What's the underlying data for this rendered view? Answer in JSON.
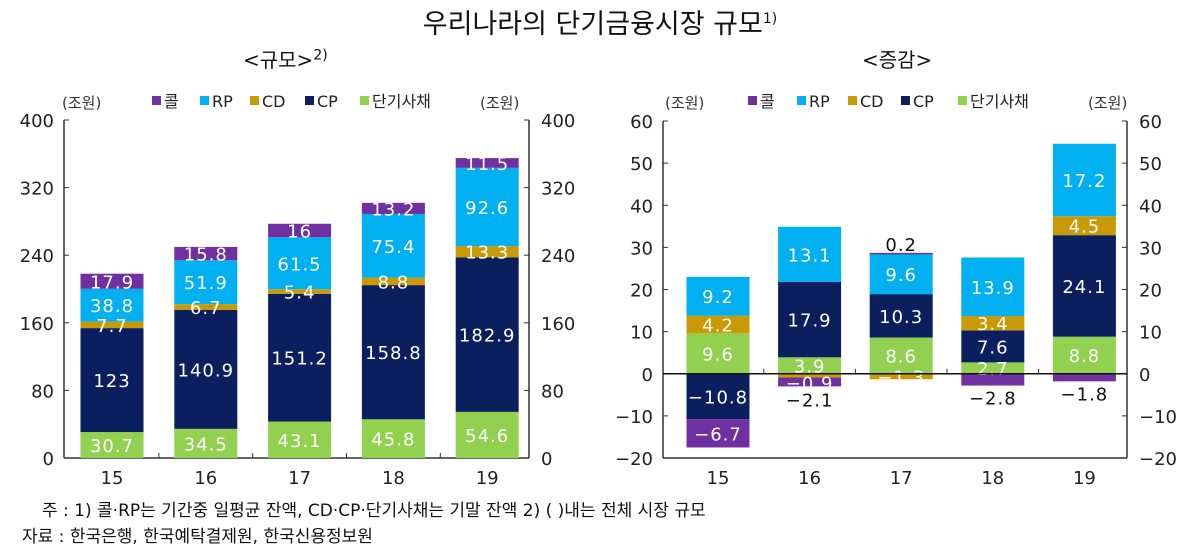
{
  "title": "우리나라의 단기금융시장 규모",
  "title_note": "1)",
  "footnote": "주 : 1) 콜·RP는 기간중 일평균 잔액, CD·CP·단기사채는 기말 잔액    2) ( )내는 전체 시장 규모",
  "source": "자료 : 한국은행, 한국예탁결제원, 한국신용정보원",
  "chart_data": [
    {
      "type": "bar",
      "stacked": true,
      "title": "<규모>",
      "title_note": "2)",
      "ylabel": "(조원)",
      "ylabel_right": "(조원)",
      "ylim": [
        0,
        400
      ],
      "yticks": [
        0,
        80,
        160,
        240,
        320,
        400
      ],
      "categories": [
        "15",
        "16",
        "17",
        "18",
        "19"
      ],
      "legend_position": "top",
      "series": [
        {
          "name": "단기사채",
          "color": "#92d050",
          "values": [
            30.7,
            34.5,
            43.1,
            45.8,
            54.6
          ]
        },
        {
          "name": "CP",
          "color": "#0b1f5e",
          "values": [
            123.0,
            140.9,
            151.2,
            158.8,
            182.9
          ]
        },
        {
          "name": "CD",
          "color": "#c99a06",
          "values": [
            7.7,
            6.7,
            5.4,
            8.8,
            13.3
          ]
        },
        {
          "name": "RP",
          "color": "#00b0f0",
          "values": [
            38.8,
            51.9,
            61.5,
            75.4,
            92.6
          ]
        },
        {
          "name": "콜",
          "color": "#7030a0",
          "values": [
            17.9,
            15.8,
            16.0,
            13.2,
            11.5
          ]
        }
      ]
    },
    {
      "type": "bar",
      "stacked": true,
      "title": "<증감>",
      "ylabel": "(조원)",
      "ylabel_right": "(조원)",
      "ylim": [
        -20,
        60
      ],
      "yticks": [
        -20,
        -10,
        0,
        10,
        20,
        30,
        40,
        50,
        60
      ],
      "categories": [
        "15",
        "16",
        "17",
        "18",
        "19"
      ],
      "legend_position": "top",
      "series": [
        {
          "name": "단기사채",
          "color": "#92d050",
          "values": [
            9.6,
            3.9,
            8.6,
            2.7,
            8.8
          ]
        },
        {
          "name": "CP",
          "color": "#0b1f5e",
          "values": [
            -10.8,
            17.9,
            10.3,
            7.6,
            24.1
          ]
        },
        {
          "name": "CD",
          "color": "#c99a06",
          "values": [
            4.2,
            -0.9,
            -1.3,
            3.4,
            4.5
          ]
        },
        {
          "name": "RP",
          "color": "#00b0f0",
          "values": [
            9.2,
            13.1,
            9.6,
            13.9,
            17.2
          ]
        },
        {
          "name": "콜",
          "color": "#7030a0",
          "values": [
            -6.7,
            -2.1,
            0.2,
            -2.8,
            -1.8
          ]
        }
      ]
    }
  ]
}
